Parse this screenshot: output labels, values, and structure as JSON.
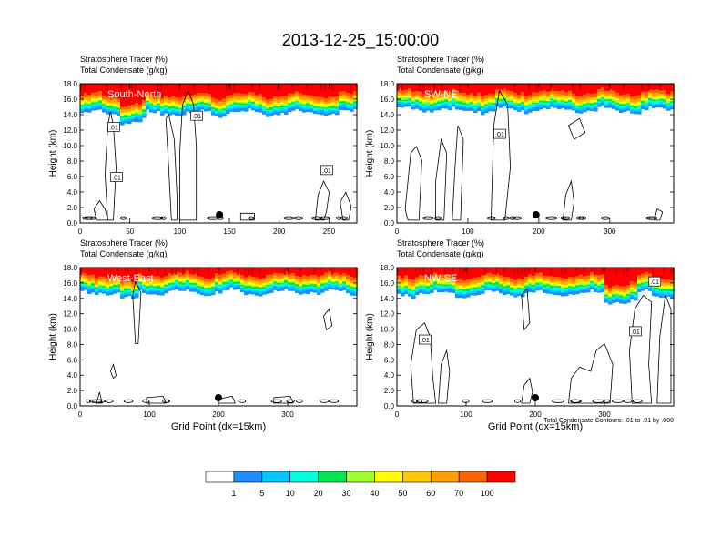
{
  "title": "2013-12-25_15:00:00",
  "chart_data": [
    {
      "type": "heatmap",
      "field_label": "Stratosphere Tracer   (%)",
      "contour_label": "Total Condensate   (g/kg)",
      "panel_label": "South-North",
      "xlim": [
        0,
        278
      ],
      "xticks": [
        0,
        50,
        100,
        150,
        200,
        250
      ],
      "ylim": [
        0,
        18
      ],
      "yticks": [
        "0.0",
        "2.0",
        "4.0",
        "6.0",
        "8.0",
        "10.0",
        "12.0",
        "14.0",
        "16.0",
        "18.0"
      ],
      "ylabel": "Height (km)",
      "xlabel": "",
      "marker_x": 140,
      "tracer_base_km": 14.2,
      "contour_labels": [
        ".01",
        ".01",
        ".01",
        ".01"
      ]
    },
    {
      "type": "heatmap",
      "field_label": "Stratosphere Tracer   (%)",
      "contour_label": "Total Condensate   (g/kg)",
      "panel_label": "SW-NE",
      "xlim": [
        0,
        390
      ],
      "xticks": [
        0,
        100,
        200,
        300
      ],
      "ylim": [
        0,
        18
      ],
      "yticks": [
        "0.0",
        "2.0",
        "4.0",
        "6.0",
        "8.0",
        "10.0",
        "12.0",
        "14.0",
        "16.0",
        "18.0"
      ],
      "ylabel": "Height (km)",
      "xlabel": "",
      "marker_x": 196,
      "tracer_base_km": 14.6,
      "contour_labels": [
        ".01"
      ]
    },
    {
      "type": "heatmap",
      "field_label": "Stratosphere Tracer   (%)",
      "contour_label": "Total Condensate   (g/kg)",
      "panel_label": "West-East",
      "xlim": [
        0,
        400
      ],
      "xticks": [
        0,
        100,
        200,
        300
      ],
      "ylim": [
        0,
        18
      ],
      "yticks": [
        "0.0",
        "2.0",
        "4.0",
        "6.0",
        "8.0",
        "10.0",
        "12.0",
        "14.0",
        "16.0",
        "18.0"
      ],
      "ylabel": "Height (km)",
      "xlabel": "Grid Point (dx=15km)",
      "marker_x": 200,
      "tracer_base_km": 14.8,
      "contour_labels": []
    },
    {
      "type": "heatmap",
      "field_label": "Stratosphere Tracer   (%)",
      "contour_label": "Total Condensate   (g/kg)",
      "panel_label": "NW-SE",
      "xlim": [
        0,
        400
      ],
      "xticks": [
        0,
        100,
        200,
        300
      ],
      "ylim": [
        0,
        18
      ],
      "yticks": [
        "0.0",
        "2.0",
        "4.0",
        "6.0",
        "8.0",
        "10.0",
        "12.0",
        "14.0",
        "16.0",
        "18.0"
      ],
      "ylabel": "Height (km)",
      "xlabel": "Grid Point (dx=15km)",
      "marker_x": 200,
      "tracer_base_km": 14.6,
      "contour_labels": [
        ".01",
        ".01",
        ".01"
      ],
      "contour_info": "Total Condensate Contours: .01 to .01 by .000"
    }
  ],
  "colorbar": {
    "labels": [
      "1",
      "5",
      "10",
      "20",
      "30",
      "40",
      "50",
      "60",
      "70",
      "100"
    ],
    "colors": [
      "#ffffff",
      "#1e8cff",
      "#00c8ff",
      "#00ffdc",
      "#00e650",
      "#00e600",
      "#a0ff28",
      "#ffff00",
      "#ffc800",
      "#ffa000",
      "#ff6400",
      "#ff0000"
    ]
  }
}
